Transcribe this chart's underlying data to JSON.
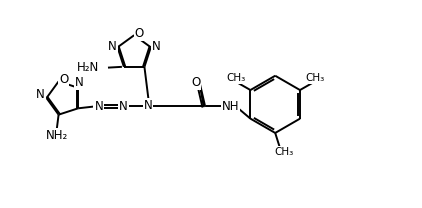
{
  "background_color": "#ffffff",
  "line_color": "#000000",
  "line_width": 1.4,
  "font_size": 8.5,
  "fig_width": 4.22,
  "fig_height": 2.08,
  "dpi": 100,
  "xlim": [
    0,
    10.5
  ],
  "ylim": [
    0,
    5.2
  ]
}
